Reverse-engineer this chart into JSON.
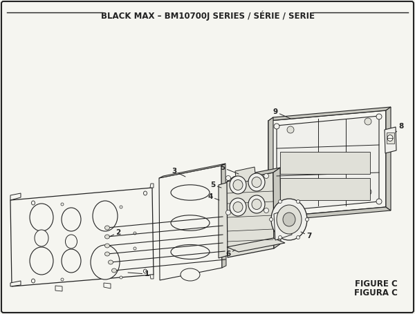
{
  "title": "BLACK MAX – BM10700J SERIES / SÉRIE / SERIE",
  "figure_label": "FIGURE C",
  "figura_label": "FIGURA C",
  "bg_color": "#f5f5f0",
  "border_color": "#222222",
  "line_color": "#222222",
  "title_fontsize": 8.5,
  "label_fontsize": 7.5,
  "figure_label_fontsize": 8.5
}
